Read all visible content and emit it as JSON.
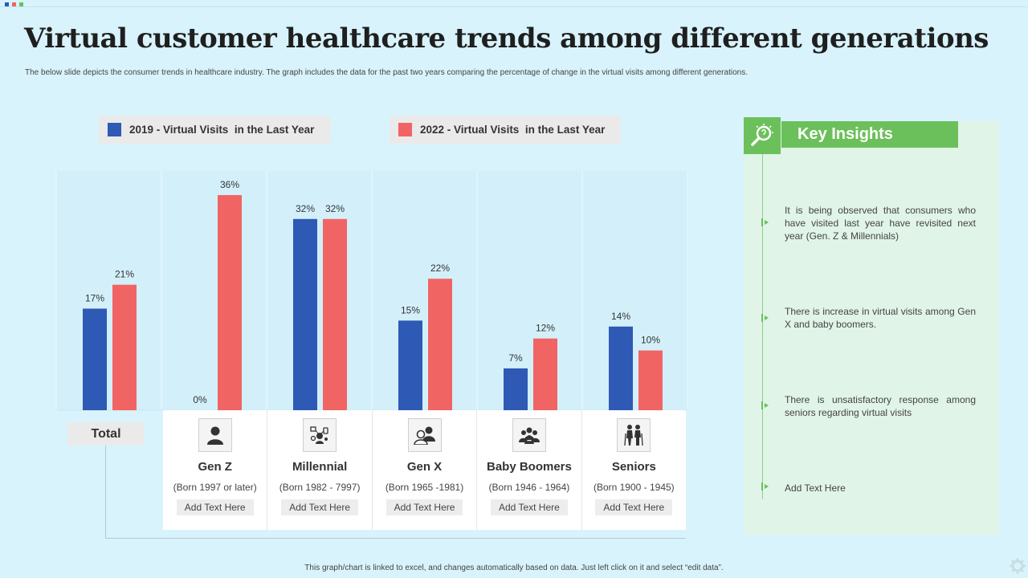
{
  "title": "Virtual customer healthcare trends among different generations",
  "subtitle": "The below slide depicts the consumer trends in healthcare industry. The graph includes the data for the past two years comparing the percentage of change in the virtual visits among different generations.",
  "colors": {
    "series_2019": "#2e59b5",
    "series_2022": "#f16464",
    "accent_green": "#6cc05b"
  },
  "chart_data": {
    "type": "bar",
    "categories": [
      "Total",
      "Gen Z",
      "Millennial",
      "Gen X",
      "Baby Boomers",
      "Seniors"
    ],
    "series": [
      {
        "name": "2019 - Virtual Visits  in the Last Year",
        "values": [
          17,
          0,
          32,
          15,
          7,
          14
        ],
        "labels": [
          "17%",
          "0%",
          "32%",
          "15%",
          "7%",
          "14%"
        ]
      },
      {
        "name": "2022 - Virtual Visits  in the Last Year",
        "values": [
          21,
          36,
          32,
          22,
          12,
          10
        ],
        "labels": [
          "21%",
          "36%",
          "32%",
          "22%",
          "12%",
          "10%"
        ]
      }
    ],
    "ylim": [
      0,
      36
    ],
    "grid": "vertical category separators",
    "legend": "top"
  },
  "legend": {
    "item_2019": "2019 - Virtual Visits  in the Last Year",
    "item_2022": "2022 - Virtual Visits  in the Last Year"
  },
  "total_label": "Total",
  "generations": [
    {
      "name": "Gen Z",
      "born": "(Born 1997 or later)",
      "add_text": "Add Text Here",
      "icon": "person-icon"
    },
    {
      "name": "Millennial",
      "born": "(Born 1982 - 7997)",
      "add_text": "Add Text Here",
      "icon": "millennial-devices-icon"
    },
    {
      "name": "Gen X",
      "born": "(Born 1965 -1981)",
      "add_text": "Add Text Here",
      "icon": "couple-icon"
    },
    {
      "name": "Baby Boomers",
      "born": "(Born 1946 - 1964)",
      "add_text": "Add Text Here",
      "icon": "group-icon"
    },
    {
      "name": "Seniors",
      "born": "(Born 1900 - 1945)",
      "add_text": "Add Text Here",
      "icon": "elderly-couple-icon"
    }
  ],
  "insights": {
    "header": "Key Insights",
    "icon": "lightbulb-magnifier-icon",
    "items": [
      "It is being observed that consumers who have visited last year have revisited next year (Gen. Z & Millennials)",
      "There is increase in virtual visits among Gen X and baby boomers.",
      "There is unsatisfactory response among seniors regarding virtual visits",
      "Add Text Here"
    ]
  },
  "footer": "This graph/chart is linked to excel, and changes automatically based on data. Just left click on it and select “edit data”."
}
